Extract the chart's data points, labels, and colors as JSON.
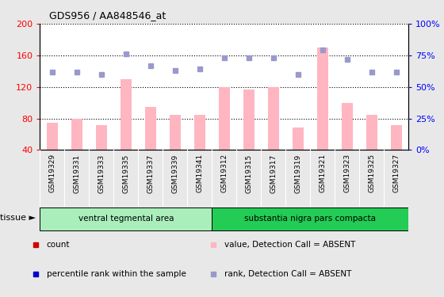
{
  "title": "GDS956 / AA848546_at",
  "samples": [
    "GSM19329",
    "GSM19331",
    "GSM19333",
    "GSM19335",
    "GSM19337",
    "GSM19339",
    "GSM19341",
    "GSM19312",
    "GSM19315",
    "GSM19317",
    "GSM19319",
    "GSM19321",
    "GSM19323",
    "GSM19325",
    "GSM19327"
  ],
  "bar_values": [
    75,
    80,
    72,
    130,
    95,
    85,
    85,
    120,
    117,
    120,
    68,
    170,
    100,
    85,
    72
  ],
  "rank_values": [
    62,
    62,
    60,
    76,
    67,
    63,
    64,
    73,
    73,
    73,
    60,
    79,
    72,
    62,
    62
  ],
  "left_ylim": [
    40,
    200
  ],
  "right_ylim": [
    0,
    100
  ],
  "left_yticks": [
    40,
    80,
    120,
    160,
    200
  ],
  "right_yticks": [
    0,
    25,
    50,
    75,
    100
  ],
  "right_yticklabels": [
    "0%",
    "25%",
    "50%",
    "75%",
    "100%"
  ],
  "bar_color": "#FFB6C1",
  "rank_color": "#9999CC",
  "tissue_groups": [
    {
      "label": "ventral tegmental area",
      "start": 0,
      "end": 7,
      "color": "#AAEEBB"
    },
    {
      "label": "substantia nigra pars compacta",
      "start": 7,
      "end": 15,
      "color": "#22CC55"
    }
  ],
  "tissue_label": "tissue",
  "legend_items": [
    {
      "color": "#CC0000",
      "label": "count"
    },
    {
      "color": "#0000CC",
      "label": "percentile rank within the sample"
    },
    {
      "color": "#FFB6C1",
      "label": "value, Detection Call = ABSENT"
    },
    {
      "color": "#9999CC",
      "label": "rank, Detection Call = ABSENT"
    }
  ],
  "grid_color": "black",
  "bg_color": "#E8E8E8",
  "plot_bg": "white",
  "xlabel_bg": "#CCCCCC"
}
